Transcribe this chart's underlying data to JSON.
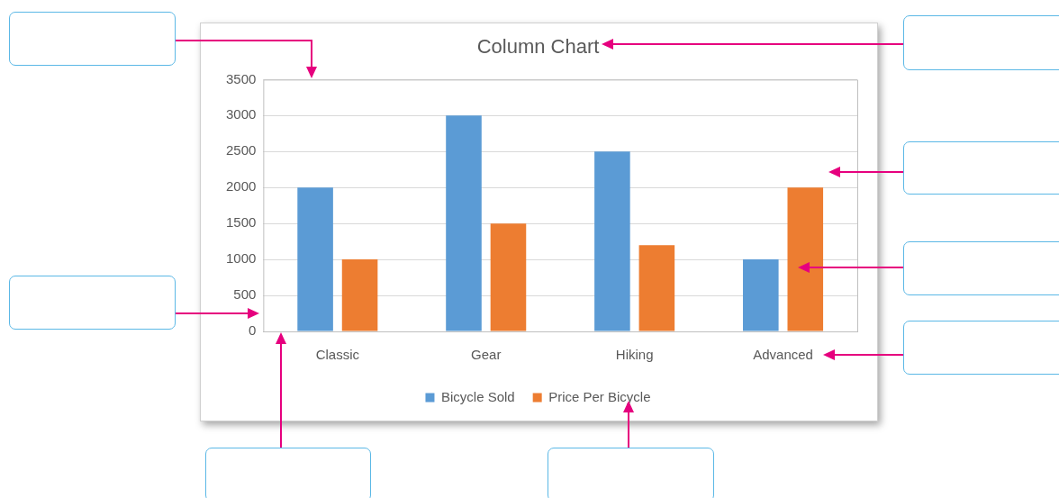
{
  "chart_data": {
    "type": "bar",
    "title": "Column Chart",
    "categories": [
      "Classic",
      "Gear",
      "Hiking",
      "Advanced"
    ],
    "series": [
      {
        "name": "Bicycle Sold",
        "color": "#5b9bd5",
        "values": [
          2000,
          3000,
          2500,
          1000
        ]
      },
      {
        "name": "Price Per Bicycle",
        "color": "#ed7d31",
        "values": [
          1000,
          1500,
          1200,
          2000
        ]
      }
    ],
    "ylim": [
      0,
      3500
    ],
    "yticks": [
      0,
      500,
      1000,
      1500,
      2000,
      2500,
      3000,
      3500
    ],
    "grid": "y",
    "legend": "bottom"
  }
}
